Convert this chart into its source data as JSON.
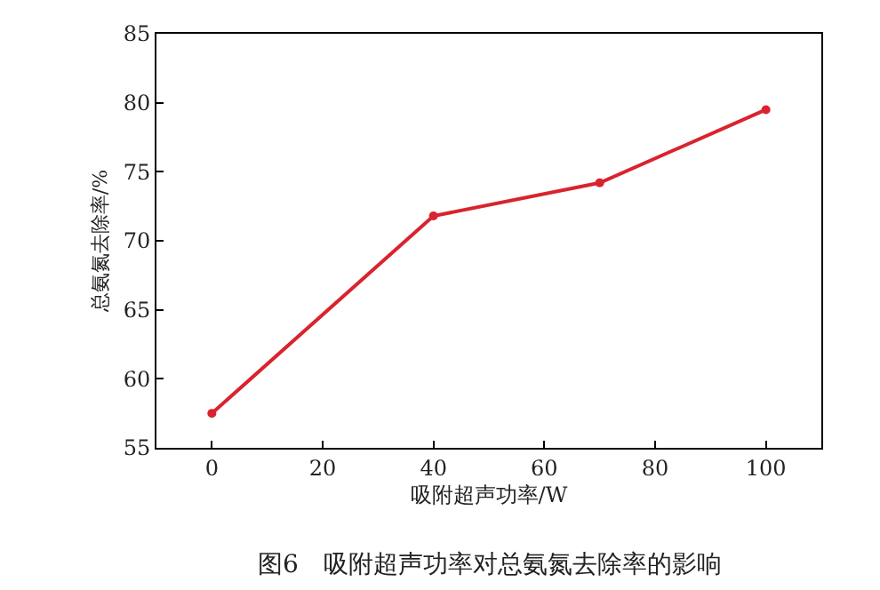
{
  "chart_data": {
    "type": "line",
    "x": [
      0,
      40,
      70,
      100
    ],
    "series": [
      {
        "color": "#d9232e",
        "values": [
          57.5,
          71.8,
          74.2,
          79.5
        ]
      }
    ],
    "xlabel": "吸附超声功率/W",
    "ylabel": "总氨氮去除率/%",
    "xlim": [
      -10,
      110
    ],
    "xticks": [
      0,
      20,
      40,
      60,
      80,
      100
    ],
    "ylim": [
      55,
      85
    ],
    "yticks": [
      55,
      60,
      65,
      70,
      75,
      80,
      85
    ],
    "marker": "circle",
    "line_style": "solid",
    "annotations": [
      "图6　吸附超声功率对总氨氮去除率的影响"
    ]
  }
}
